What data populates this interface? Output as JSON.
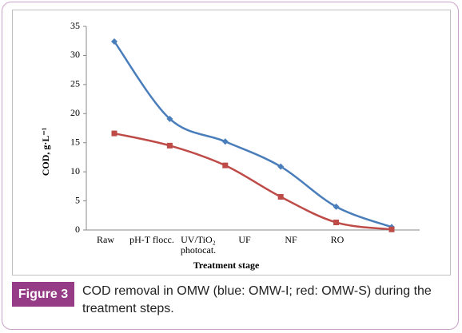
{
  "chart_data": {
    "type": "line",
    "categories": [
      "Raw",
      "pH-T flocc.",
      "UV/TiO₂ photocat.",
      "UF",
      "NF",
      "RO"
    ],
    "series": [
      {
        "name": "OMW-I",
        "color": "#4a7ebb",
        "marker": "diamond",
        "values": [
          32.4,
          19.1,
          15.2,
          10.9,
          4.0,
          0.5
        ]
      },
      {
        "name": "OMW-S",
        "color": "#be4b48",
        "marker": "square",
        "values": [
          16.6,
          14.5,
          11.1,
          5.7,
          1.3,
          0.1
        ]
      }
    ],
    "ylim": [
      0,
      35
    ],
    "yticks": [
      0,
      5,
      10,
      15,
      20,
      25,
      30,
      35
    ],
    "ylabel": "COD, g·L⁻¹",
    "xlabel": "Treatment stage",
    "grid": false,
    "smooth": true,
    "figure_label": "Figure 3",
    "caption": "COD removal in OMW (blue: OMW-I; red: OMW-S) during the treatment steps."
  }
}
